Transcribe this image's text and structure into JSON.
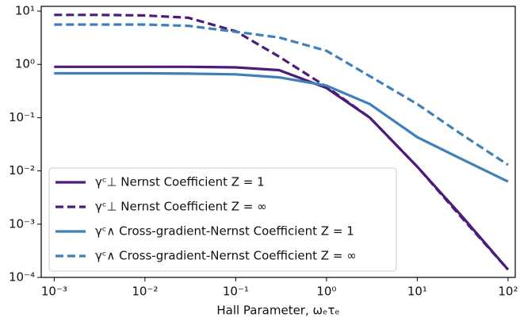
{
  "chart_data": {
    "type": "line",
    "xlabel": "Hall Parameter, ωₑτₑ",
    "xscale": "log",
    "yscale": "log",
    "x": [
      0.001,
      0.003,
      0.01,
      0.03,
      0.1,
      0.3,
      1,
      3,
      10,
      30,
      100
    ],
    "series": [
      {
        "name": "γᶜ⊥ Nernst Coefficient Z = 1",
        "color": "#4b1c7a",
        "dash": false,
        "values": [
          0.9,
          0.9,
          0.9,
          0.9,
          0.88,
          0.78,
          0.36,
          0.1,
          0.012,
          0.0015,
          0.00014
        ]
      },
      {
        "name": "γᶜ⊥ Nernst Coefficient Z = ∞",
        "color": "#4b1c7a",
        "dash": true,
        "values": [
          8.5,
          8.5,
          8.3,
          7.5,
          4.2,
          1.4,
          0.38,
          0.1,
          0.012,
          0.0014,
          0.00014
        ]
      },
      {
        "name": "γᶜ∧ Cross-gradient-Nernst Coefficient Z = 1",
        "color": "#3f80b8",
        "dash": false,
        "values": [
          0.68,
          0.68,
          0.68,
          0.67,
          0.65,
          0.57,
          0.4,
          0.18,
          0.043,
          0.017,
          0.0063
        ]
      },
      {
        "name": "γᶜ∧ Cross-gradient-Nernst Coefficient Z = ∞",
        "color": "#3f80b8",
        "dash": true,
        "values": [
          5.6,
          5.6,
          5.6,
          5.3,
          4.1,
          3.2,
          1.8,
          0.6,
          0.18,
          0.05,
          0.013
        ]
      }
    ],
    "xlim": [
      0.00072,
      120
    ],
    "ylim": [
      0.0001,
      12.3
    ],
    "xticks": [
      {
        "value": 0.001,
        "label": "10⁻³"
      },
      {
        "value": 0.01,
        "label": "10⁻²"
      },
      {
        "value": 0.1,
        "label": "10⁻¹"
      },
      {
        "value": 1,
        "label": "10⁰"
      },
      {
        "value": 10,
        "label": "10¹"
      },
      {
        "value": 100,
        "label": "10²"
      }
    ],
    "yticks": [
      {
        "value": 0.0001,
        "label": "10⁻⁴"
      },
      {
        "value": 0.001,
        "label": "10⁻³"
      },
      {
        "value": 0.01,
        "label": "10⁻²"
      },
      {
        "value": 0.1,
        "label": "10⁻¹"
      },
      {
        "value": 1,
        "label": "10⁰"
      },
      {
        "value": 10,
        "label": "10¹"
      }
    ],
    "legend": "lower left"
  }
}
